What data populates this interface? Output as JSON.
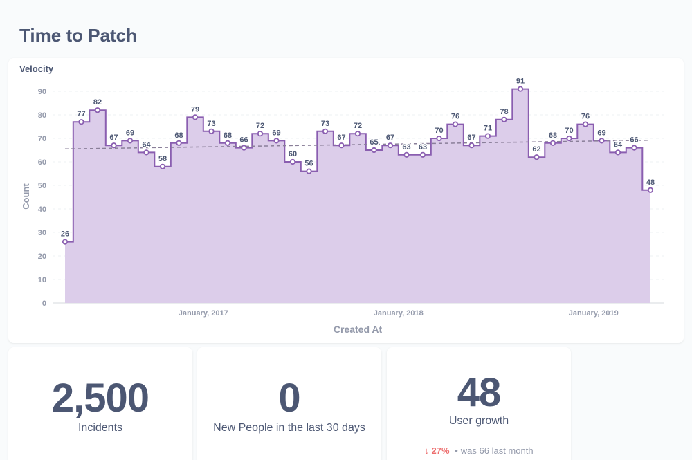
{
  "page_title": "Time to Patch",
  "chart_title": "Velocity",
  "chart_data": {
    "type": "area",
    "step": true,
    "title": "Velocity",
    "xlabel": "Created At",
    "ylabel": "Count",
    "ylim": [
      0,
      90
    ],
    "yticks": [
      0,
      10,
      20,
      30,
      40,
      50,
      60,
      70,
      80,
      90
    ],
    "xtick_labels": [
      {
        "label": "January, 2017",
        "index": 8.5
      },
      {
        "label": "January, 2018",
        "index": 20.5
      },
      {
        "label": "January, 2019",
        "index": 32.5
      }
    ],
    "values": [
      26,
      77,
      82,
      67,
      69,
      64,
      58,
      68,
      79,
      73,
      68,
      66,
      72,
      69,
      60,
      56,
      73,
      67,
      72,
      65,
      67,
      63,
      63,
      70,
      76,
      67,
      71,
      78,
      91,
      62,
      68,
      70,
      76,
      69,
      64,
      66,
      48
    ],
    "trend_line": {
      "start": 65.5,
      "end": 69.2
    },
    "colors": {
      "line": "#8a5eb0",
      "fill": "#dccdea",
      "trend": "#8a7f99"
    },
    "grid": true
  },
  "scalars": [
    {
      "value": "2,500",
      "label": "Incidents"
    },
    {
      "value": "0",
      "label": "New People in the last 30 days"
    },
    {
      "value": "48",
      "label": "User growth"
    }
  ],
  "comparison": {
    "arrow": "↓",
    "percent": "27%",
    "separator": "•",
    "was_text": "was 66",
    "period": "last month"
  }
}
